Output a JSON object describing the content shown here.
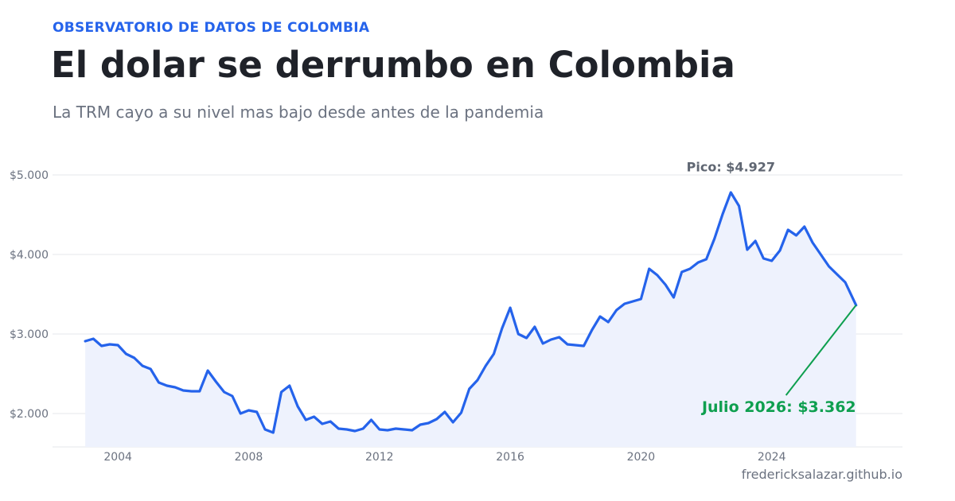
{
  "header": {
    "kicker": "OBSERVATORIO DE DATOS DE COLOMBIA",
    "title": "El dolar se derrumbo en Colombia",
    "subtitle": "La TRM cayo a su nivel mas bajo desde antes de la pandemia"
  },
  "footer": {
    "source": "fredericksalazar.github.io"
  },
  "colors": {
    "accent": "#2563eb",
    "line": "#2563eb",
    "area": "#eef2fd",
    "annotation_green": "#0e9f4f",
    "grid": "#e5e7eb",
    "text_muted": "#6b7280"
  },
  "chart_data": {
    "type": "line",
    "title": "",
    "xlabel": "",
    "ylabel": "",
    "xlim": [
      2002.0,
      2028.0
    ],
    "ylim": [
      1580,
      5300
    ],
    "x_ticks": [
      2004,
      2008,
      2012,
      2016,
      2020,
      2024
    ],
    "x_tick_labels": [
      "2004",
      "2008",
      "2012",
      "2016",
      "2020",
      "2024"
    ],
    "y_ticks": [
      2000,
      3000,
      4000,
      5000
    ],
    "y_tick_labels": [
      "$2.000",
      "$3.000",
      "$4.000",
      "$5.000"
    ],
    "grid": "horizontal",
    "series": [
      {
        "x": [
          2003.0,
          2003.25,
          2003.5,
          2003.75,
          2004.0,
          2004.25,
          2004.5,
          2004.75,
          2005.0,
          2005.25,
          2005.5,
          2005.75,
          2006.0,
          2006.25,
          2006.5,
          2006.75,
          2007.0,
          2007.25,
          2007.5,
          2007.75,
          2008.0,
          2008.25,
          2008.5,
          2008.75,
          2009.0,
          2009.25,
          2009.5,
          2009.75,
          2010.0,
          2010.25,
          2010.5,
          2010.75,
          2011.0,
          2011.25,
          2011.5,
          2011.75,
          2012.0,
          2012.25,
          2012.5,
          2012.75,
          2013.0,
          2013.25,
          2013.5,
          2013.75,
          2014.0,
          2014.25,
          2014.5,
          2014.75,
          2015.0,
          2015.25,
          2015.5,
          2015.75,
          2016.0,
          2016.25,
          2016.5,
          2016.75,
          2017.0,
          2017.25,
          2017.5,
          2017.75,
          2018.0,
          2018.25,
          2018.5,
          2018.75,
          2019.0,
          2019.25,
          2019.5,
          2019.75,
          2020.0,
          2020.25,
          2020.5,
          2020.75,
          2021.0,
          2021.25,
          2021.5,
          2021.75,
          2022.0,
          2022.25,
          2022.5,
          2022.75,
          2023.0,
          2023.25,
          2023.5,
          2023.75,
          2024.0,
          2024.25,
          2024.5,
          2024.75,
          2025.0,
          2025.25,
          2025.5,
          2025.75,
          2026.0,
          2026.25,
          2026.58
        ],
        "y": [
          2910,
          2940,
          2850,
          2870,
          2860,
          2750,
          2700,
          2600,
          2560,
          2390,
          2350,
          2330,
          2290,
          2280,
          2280,
          2540,
          2400,
          2270,
          2220,
          2000,
          2040,
          2020,
          1800,
          1760,
          2270,
          2350,
          2090,
          1920,
          1960,
          1870,
          1900,
          1810,
          1800,
          1780,
          1810,
          1920,
          1800,
          1790,
          1810,
          1800,
          1790,
          1860,
          1880,
          1930,
          2020,
          1890,
          2010,
          2310,
          2420,
          2600,
          2750,
          3070,
          3330,
          3000,
          2950,
          3090,
          2880,
          2930,
          2960,
          2870,
          2860,
          2850,
          3050,
          3220,
          3150,
          3300,
          3380,
          3410,
          3440,
          3820,
          3740,
          3620,
          3460,
          3780,
          3820,
          3900,
          3940,
          4200,
          4510,
          4780,
          4610,
          4060,
          4170,
          3950,
          3920,
          4050,
          4310,
          4240,
          4350,
          4150,
          4000,
          3850,
          3750,
          3650,
          3362
        ],
        "color": "#2563eb"
      }
    ],
    "annotations": [
      {
        "label": "Pico: $4.927",
        "x": 2022.75,
        "y": 4927
      },
      {
        "label": "Julio 2026: $3.362",
        "x": 2026.58,
        "y": 3362
      }
    ]
  }
}
